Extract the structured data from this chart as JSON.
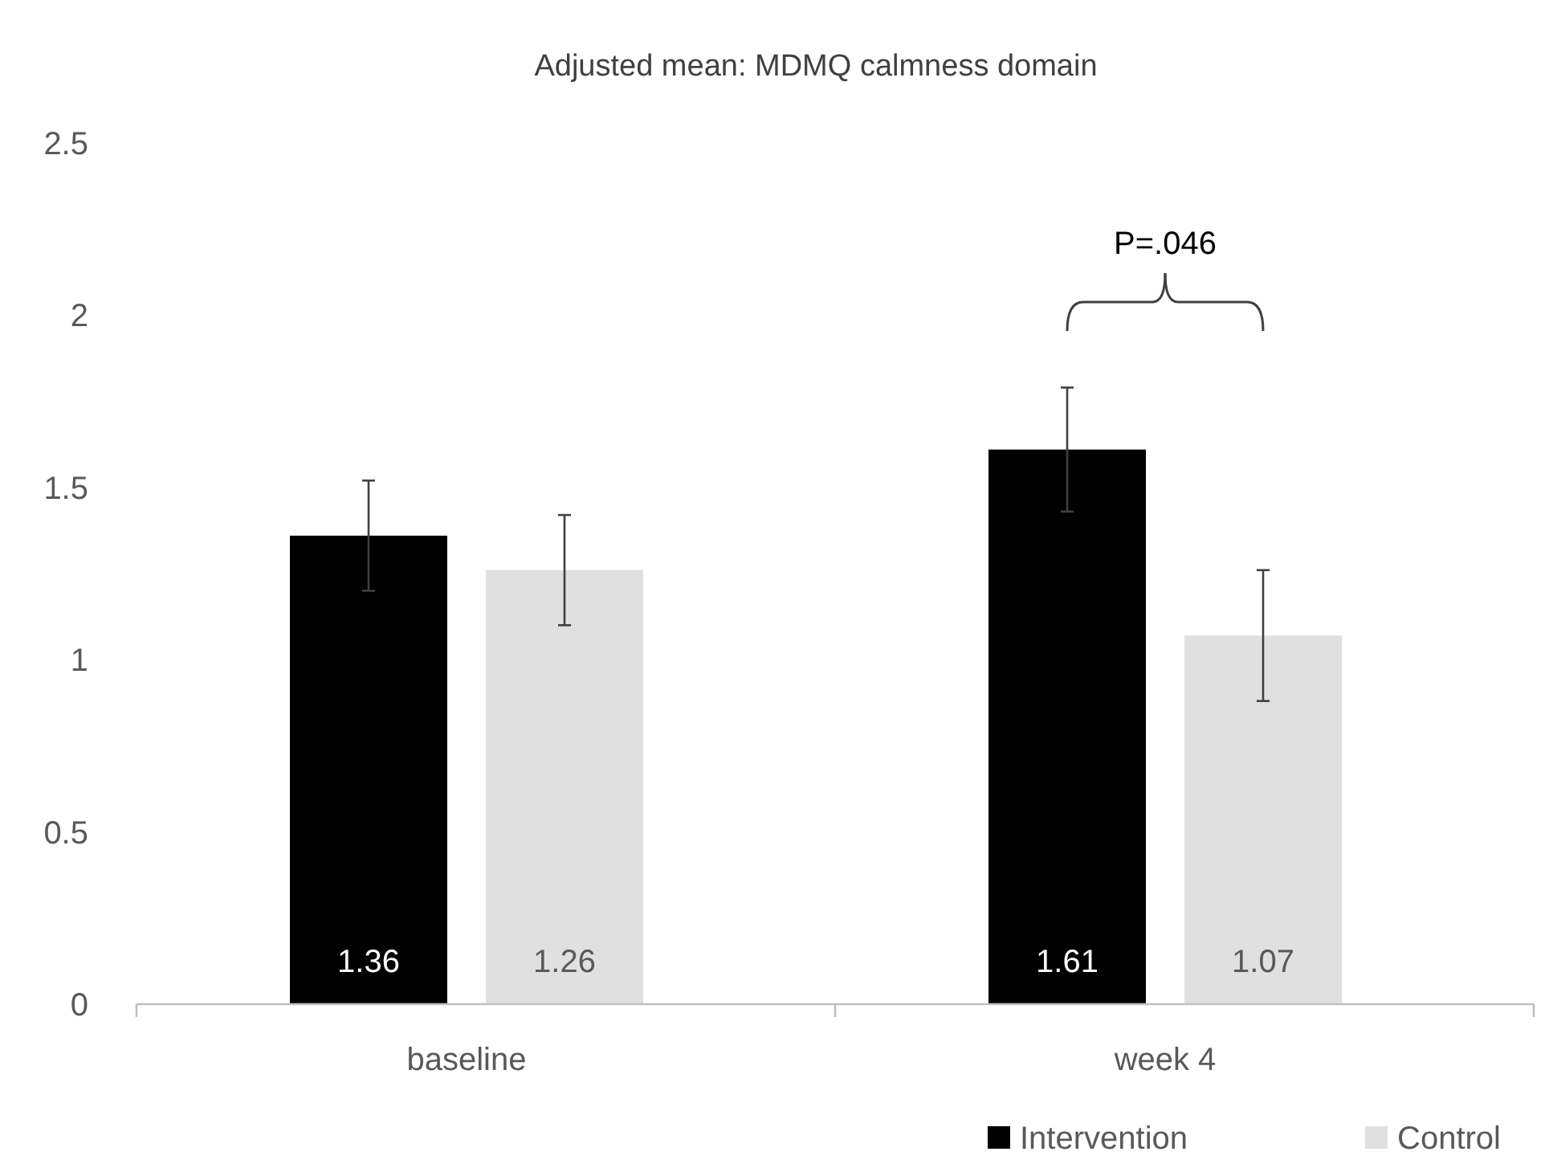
{
  "chart_data": {
    "type": "bar",
    "title": "Adjusted mean: MDMQ calmness domain",
    "categories": [
      "baseline",
      "week 4"
    ],
    "series": [
      {
        "name": "Intervention",
        "color": "#000000",
        "values": [
          1.36,
          1.61
        ],
        "errors": [
          0.16,
          0.18
        ]
      },
      {
        "name": "Control",
        "color": "#e0e0e0",
        "values": [
          1.26,
          1.07
        ],
        "errors": [
          0.16,
          0.19
        ]
      }
    ],
    "ylim": [
      0,
      2.5
    ],
    "yticks": [
      0,
      0.5,
      1,
      1.5,
      2,
      2.5
    ],
    "grid": false,
    "legend": "bottom right",
    "data_labels": true,
    "annotations": [
      "P=.046"
    ]
  }
}
